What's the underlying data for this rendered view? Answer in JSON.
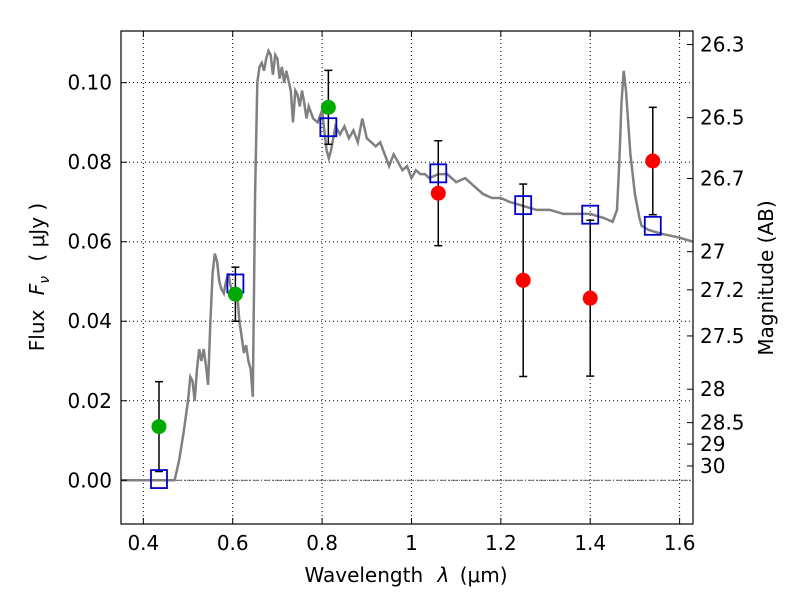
{
  "chart_data": {
    "type": "scatter",
    "xlabel_prefix": "Wavelength",
    "xlabel_symbol": "λ",
    "xlabel_unit": "(μm)",
    "ylabel_prefix": "Flux",
    "ylabel_symbol": "F",
    "ylabel_sub": "ν",
    "ylabel_unit": "( μJy )",
    "y2label": "Magnitude (AB)",
    "xlim": [
      0.35,
      1.63
    ],
    "ylim": [
      -0.011,
      0.113
    ],
    "x_ticks": [
      0.4,
      0.6,
      0.8,
      1.0,
      1.2,
      1.4,
      1.6
    ],
    "x_tick_labels": [
      "0.4",
      "0.6",
      "0.8",
      "1",
      "1.2",
      "1.4",
      "1.6"
    ],
    "y_ticks": [
      0.0,
      0.02,
      0.04,
      0.06,
      0.08,
      0.1
    ],
    "y_tick_labels": [
      "0.00",
      "0.02",
      "0.04",
      "0.06",
      "0.08",
      "0.10"
    ],
    "mag_ticks": [
      {
        "label": "26.3",
        "flux": 0.1096
      },
      {
        "label": "26.5",
        "flux": 0.0912
      },
      {
        "label": "26.7",
        "flux": 0.0759
      },
      {
        "label": "27",
        "flux": 0.0575
      },
      {
        "label": "27.2",
        "flux": 0.0479
      },
      {
        "label": "27.5",
        "flux": 0.0363
      },
      {
        "label": "28",
        "flux": 0.0229
      },
      {
        "label": "28.5",
        "flux": 0.0145
      },
      {
        "label": "29",
        "flux": 0.0091
      },
      {
        "label": "30",
        "flux": 0.0036
      }
    ],
    "grid": true,
    "colors": {
      "model": "#808080",
      "green_points": "#00aa00",
      "red_points": "#ff0000",
      "model_squares": "#0000cc",
      "errorbar": "#000000",
      "zero_line": "#444444"
    },
    "series": [
      {
        "points": [
          {
            "x": 0.435,
            "y": 0.0135,
            "err": 0.0113
          },
          {
            "x": 0.606,
            "y": 0.0468,
            "err": 0.0068
          },
          {
            "x": 0.814,
            "y": 0.0938,
            "err": 0.0093
          }
        ]
      },
      {
        "points": [
          {
            "x": 1.06,
            "y": 0.0722,
            "err": 0.0132
          },
          {
            "x": 1.25,
            "y": 0.0503,
            "err": 0.0242
          },
          {
            "x": 1.4,
            "y": 0.0458,
            "err": 0.0196
          },
          {
            "x": 1.54,
            "y": 0.0803,
            "err": 0.0135
          }
        ]
      },
      {
        "points": [
          {
            "x": 0.435,
            "y": 0.0003
          },
          {
            "x": 0.606,
            "y": 0.0495
          },
          {
            "x": 0.814,
            "y": 0.0888
          },
          {
            "x": 1.06,
            "y": 0.0772
          },
          {
            "x": 1.25,
            "y": 0.0692
          },
          {
            "x": 1.4,
            "y": 0.0668
          },
          {
            "x": 1.54,
            "y": 0.064
          }
        ]
      },
      {
        "line": [
          [
            0.35,
            0.0
          ],
          [
            0.47,
            0.0
          ],
          [
            0.48,
            0.005
          ],
          [
            0.49,
            0.012
          ],
          [
            0.5,
            0.02
          ],
          [
            0.505,
            0.026
          ],
          [
            0.51,
            0.025
          ],
          [
            0.515,
            0.02
          ],
          [
            0.52,
            0.028
          ],
          [
            0.525,
            0.033
          ],
          [
            0.53,
            0.03
          ],
          [
            0.535,
            0.033
          ],
          [
            0.54,
            0.029
          ],
          [
            0.545,
            0.024
          ],
          [
            0.55,
            0.04
          ],
          [
            0.555,
            0.052
          ],
          [
            0.56,
            0.057
          ],
          [
            0.565,
            0.055
          ],
          [
            0.57,
            0.05
          ],
          [
            0.575,
            0.048
          ],
          [
            0.58,
            0.047
          ],
          [
            0.585,
            0.05
          ],
          [
            0.59,
            0.052
          ],
          [
            0.595,
            0.049
          ],
          [
            0.6,
            0.047
          ],
          [
            0.61,
            0.047
          ],
          [
            0.615,
            0.04
          ],
          [
            0.62,
            0.036
          ],
          [
            0.625,
            0.032
          ],
          [
            0.63,
            0.034
          ],
          [
            0.635,
            0.03
          ],
          [
            0.64,
            0.028
          ],
          [
            0.645,
            0.021
          ],
          [
            0.65,
            0.072
          ],
          [
            0.655,
            0.1
          ],
          [
            0.66,
            0.104
          ],
          [
            0.665,
            0.105
          ],
          [
            0.67,
            0.103
          ],
          [
            0.675,
            0.106
          ],
          [
            0.68,
            0.108
          ],
          [
            0.685,
            0.107
          ],
          [
            0.69,
            0.102
          ],
          [
            0.695,
            0.107
          ],
          [
            0.7,
            0.106
          ],
          [
            0.705,
            0.101
          ],
          [
            0.71,
            0.104
          ],
          [
            0.715,
            0.1
          ],
          [
            0.72,
            0.103
          ],
          [
            0.73,
            0.098
          ],
          [
            0.735,
            0.09
          ],
          [
            0.74,
            0.098
          ],
          [
            0.745,
            0.097
          ],
          [
            0.75,
            0.094
          ],
          [
            0.755,
            0.098
          ],
          [
            0.76,
            0.095
          ],
          [
            0.765,
            0.091
          ],
          [
            0.77,
            0.094
          ],
          [
            0.78,
            0.091
          ],
          [
            0.79,
            0.09
          ],
          [
            0.8,
            0.093
          ],
          [
            0.805,
            0.088
          ],
          [
            0.81,
            0.083
          ],
          [
            0.815,
            0.081
          ],
          [
            0.82,
            0.083
          ],
          [
            0.825,
            0.086
          ],
          [
            0.83,
            0.089
          ],
          [
            0.84,
            0.087
          ],
          [
            0.85,
            0.089
          ],
          [
            0.86,
            0.086
          ],
          [
            0.87,
            0.088
          ],
          [
            0.88,
            0.085
          ],
          [
            0.89,
            0.091
          ],
          [
            0.9,
            0.086
          ],
          [
            0.91,
            0.085
          ],
          [
            0.92,
            0.084
          ],
          [
            0.93,
            0.085
          ],
          [
            0.94,
            0.082
          ],
          [
            0.95,
            0.079
          ],
          [
            0.96,
            0.082
          ],
          [
            0.97,
            0.08
          ],
          [
            0.98,
            0.078
          ],
          [
            0.99,
            0.079
          ],
          [
            1.0,
            0.076
          ],
          [
            1.01,
            0.078
          ],
          [
            1.02,
            0.077
          ],
          [
            1.03,
            0.077
          ],
          [
            1.04,
            0.076
          ],
          [
            1.06,
            0.077
          ],
          [
            1.08,
            0.077
          ],
          [
            1.1,
            0.075
          ],
          [
            1.12,
            0.076
          ],
          [
            1.14,
            0.074
          ],
          [
            1.16,
            0.072
          ],
          [
            1.18,
            0.071
          ],
          [
            1.2,
            0.071
          ],
          [
            1.22,
            0.07
          ],
          [
            1.25,
            0.069
          ],
          [
            1.28,
            0.068
          ],
          [
            1.31,
            0.068
          ],
          [
            1.34,
            0.067
          ],
          [
            1.37,
            0.067
          ],
          [
            1.4,
            0.067
          ],
          [
            1.43,
            0.066
          ],
          [
            1.45,
            0.065
          ],
          [
            1.46,
            0.068
          ],
          [
            1.465,
            0.08
          ],
          [
            1.47,
            0.095
          ],
          [
            1.475,
            0.103
          ],
          [
            1.48,
            0.098
          ],
          [
            1.49,
            0.082
          ],
          [
            1.5,
            0.072
          ],
          [
            1.51,
            0.066
          ],
          [
            1.515,
            0.064
          ],
          [
            1.53,
            0.063
          ],
          [
            1.56,
            0.062
          ],
          [
            1.6,
            0.061
          ],
          [
            1.63,
            0.06
          ]
        ]
      }
    ]
  }
}
